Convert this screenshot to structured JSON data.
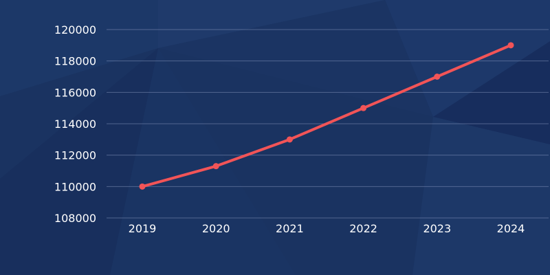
{
  "colors": {
    "background": "#1a3361",
    "line": "#f25457",
    "grid": "#8090b8",
    "text": "#ffffff"
  },
  "chart_data": {
    "type": "line",
    "title": "",
    "xlabel": "",
    "ylabel": "",
    "categories": [
      "2019",
      "2020",
      "2021",
      "2022",
      "2023",
      "2024"
    ],
    "series": [
      {
        "values": [
          110000,
          111300,
          113000,
          115000,
          117000,
          119000
        ]
      }
    ],
    "ylim": [
      108000,
      120000
    ],
    "yticks": [
      "120000",
      "118000",
      "116000",
      "114000",
      "112000",
      "110000",
      "108000"
    ],
    "grid": true,
    "legend": "none"
  }
}
